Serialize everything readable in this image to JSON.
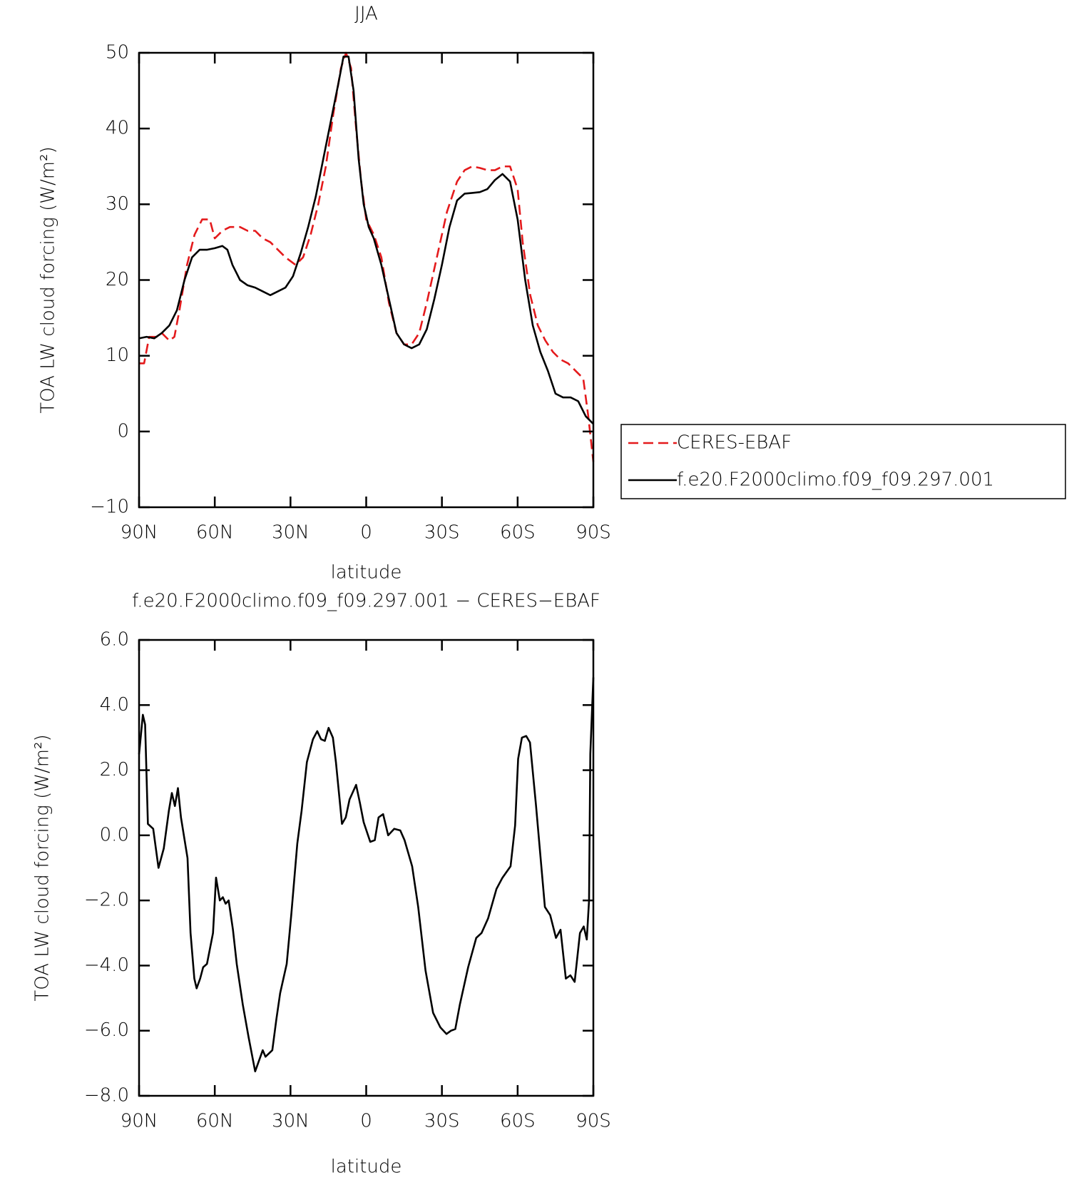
{
  "chart_data": [
    {
      "type": "line",
      "title": "JJA",
      "x_label": "latitude",
      "y_label": "TOA LW cloud forcing (W/m²)",
      "xlim": [
        90,
        -90
      ],
      "ylim": [
        -10,
        50
      ],
      "xticks": [
        {
          "value": 90,
          "label": "90N"
        },
        {
          "value": 60,
          "label": "60N"
        },
        {
          "value": 30,
          "label": "30N"
        },
        0,
        {
          "value": -30,
          "label": "30S"
        },
        {
          "value": -60,
          "label": "60S"
        },
        {
          "value": -90,
          "label": "90S"
        }
      ],
      "yticks": [
        {
          "value": -10,
          "label": "−10"
        },
        0,
        10,
        20,
        30,
        40,
        50
      ],
      "legend": "right",
      "series": [
        {
          "name": "CERES-EBAF",
          "color": "#e41a1c",
          "dash": true,
          "x": [
            90,
            88,
            86,
            83,
            81,
            78,
            76,
            74,
            71,
            68,
            65,
            62,
            60,
            57,
            54,
            50,
            47,
            44,
            41,
            38,
            35,
            32,
            28,
            25,
            22,
            19,
            16,
            13,
            10,
            8,
            6,
            4,
            2,
            0,
            -3,
            -6,
            -9,
            -12,
            -15,
            -18,
            -21,
            -24,
            -28,
            -32,
            -36,
            -39,
            -42,
            -45,
            -48,
            -51,
            -54,
            -57,
            -60,
            -62,
            -65,
            -68,
            -71,
            -74,
            -77,
            -80,
            -83,
            -86,
            -88,
            -90
          ],
          "values": [
            9,
            9,
            12.5,
            12.5,
            13,
            12,
            12.5,
            16,
            22,
            26,
            28,
            28,
            25.5,
            26.5,
            27,
            27,
            26.5,
            26.5,
            25.5,
            25,
            24,
            23,
            22,
            23,
            26,
            30,
            35,
            42,
            48,
            50,
            48,
            40,
            33,
            28,
            26,
            23,
            17,
            13,
            11.5,
            11.5,
            13,
            17,
            23,
            29,
            33,
            34.5,
            35,
            34.8,
            34.5,
            34.5,
            35,
            35,
            32,
            25,
            18,
            14,
            12,
            10.5,
            9.5,
            9,
            8,
            7,
            2,
            -4
          ]
        },
        {
          "name": "f.e20.F2000climo.f09_f09.297.001",
          "color": "#000000",
          "dash": false,
          "x": [
            90,
            87,
            84,
            81,
            78,
            75,
            72,
            69,
            66,
            63,
            60,
            57,
            55,
            53,
            50,
            47,
            44,
            41,
            38,
            35,
            32,
            29,
            26,
            23,
            20,
            17,
            14,
            11,
            9,
            7,
            5,
            3,
            1,
            -1,
            -3,
            -6,
            -9,
            -12,
            -15,
            -18,
            -21,
            -24,
            -27,
            -30,
            -33,
            -36,
            -39,
            -42,
            -45,
            -48,
            -51,
            -54,
            -57,
            -60,
            -63,
            -66,
            -69,
            -72,
            -75,
            -78,
            -81,
            -84,
            -87,
            -90
          ],
          "values": [
            12.3,
            12.5,
            12.3,
            13,
            14,
            16,
            20,
            23,
            24,
            24,
            24.2,
            24.5,
            24,
            22,
            20,
            19.3,
            19,
            18.5,
            18,
            18.5,
            19,
            20.5,
            23.5,
            27,
            31,
            36,
            41,
            46,
            49.5,
            49.5,
            45,
            36,
            30,
            27,
            25.5,
            22,
            17.5,
            13,
            11.5,
            11,
            11.5,
            13.5,
            17.5,
            22,
            27,
            30.5,
            31.4,
            31.5,
            31.6,
            32,
            33.2,
            34,
            33,
            28,
            20,
            14,
            10.5,
            8,
            5,
            4.5,
            4.5,
            4,
            2,
            1
          ]
        }
      ]
    },
    {
      "type": "line",
      "title": "f.e20.F2000climo.f09_f09.297.001 − CERES−EBAF",
      "x_label": "latitude",
      "y_label": "TOA LW cloud forcing (W/m²)",
      "xlim": [
        90,
        -90
      ],
      "ylim": [
        -8,
        6
      ],
      "xticks": [
        {
          "value": 90,
          "label": "90N"
        },
        {
          "value": 60,
          "label": "60N"
        },
        {
          "value": 30,
          "label": "30N"
        },
        0,
        {
          "value": -30,
          "label": "30S"
        },
        {
          "value": -60,
          "label": "60S"
        },
        {
          "value": -90,
          "label": "90S"
        }
      ],
      "yticks": [
        {
          "value": -8,
          "label": "−8.0"
        },
        {
          "value": -6,
          "label": "−6.0"
        },
        {
          "value": -4,
          "label": "−4.0"
        },
        {
          "value": -2,
          "label": "−2.0"
        },
        {
          "value": 0,
          "label": "0.0"
        },
        {
          "value": 2,
          "label": "2.0"
        },
        {
          "value": 4,
          "label": "4.0"
        },
        {
          "value": 6,
          "label": "6.0"
        }
      ],
      "series": [
        {
          "color": "#000000",
          "dash": false,
          "x": [
            90,
            88.5,
            87.6,
            86.5,
            84.4,
            82.3,
            80.2,
            78.2,
            77,
            75.8,
            74.6,
            73.4,
            70.8,
            69.6,
            68.1,
            67.2,
            65.8,
            64.6,
            63.1,
            60.7,
            59.5,
            58,
            56.8,
            55.7,
            54.5,
            52.8,
            51.3,
            48.9,
            46.6,
            44,
            41,
            39.9,
            37.2,
            35.6,
            34.1,
            31.5,
            29.7,
            27.3,
            25.6,
            23.5,
            21.1,
            19.4,
            17.9,
            16.4,
            14.9,
            13.2,
            12,
            9.6,
            8.1,
            6.6,
            4,
            2.5,
            1,
            -1.6,
            -3.4,
            -4.9,
            -6.7,
            -8.7,
            -11.1,
            -13.5,
            -15.2,
            -18.2,
            -20.6,
            -23.5,
            -26.5,
            -29.4,
            -31.8,
            -33.6,
            -35.3,
            -37.1,
            -40.4,
            -43.6,
            -45.7,
            -48.3,
            -51.6,
            -54,
            -57.2,
            -59,
            -60.2,
            -61.7,
            -63.4,
            -64.9,
            -67.3,
            -70.8,
            -72.9,
            -75.2,
            -77,
            -79.1,
            -80.9,
            -82.6,
            -84.7,
            -86.2,
            -87.4,
            -88.3,
            -88.8,
            -90
          ],
          "values": [
            2.49,
            3.7,
            3.4,
            0.35,
            0.2,
            -1,
            -0.4,
            0.75,
            1.3,
            0.9,
            1.45,
            0.55,
            -0.7,
            -3,
            -4.4,
            -4.7,
            -4.4,
            -4.05,
            -3.95,
            -3,
            -1.3,
            -2,
            -1.9,
            -2.1,
            -2,
            -2.9,
            -3.95,
            -5.2,
            -6.2,
            -7.25,
            -6.6,
            -6.8,
            -6.6,
            -5.65,
            -4.85,
            -3.95,
            -2.45,
            -0.25,
            0.75,
            2.25,
            2.95,
            3.2,
            2.95,
            2.9,
            3.3,
            3,
            2.25,
            0.35,
            0.55,
            1.1,
            1.55,
            1,
            0.4,
            -0.2,
            -0.15,
            0.55,
            0.65,
            0,
            0.2,
            0.15,
            -0.15,
            -0.95,
            -2.2,
            -4.15,
            -5.45,
            -5.9,
            -6.1,
            -6,
            -5.95,
            -5.2,
            -4.05,
            -3.15,
            -3,
            -2.55,
            -1.65,
            -1.3,
            -0.95,
            0.3,
            2.35,
            3,
            3.05,
            2.85,
            0.9,
            -2.2,
            -2.45,
            -3.15,
            -2.9,
            -4.4,
            -4.3,
            -4.5,
            -3,
            -2.8,
            -3.2,
            -2,
            2.5,
            4.85
          ]
        }
      ]
    }
  ]
}
